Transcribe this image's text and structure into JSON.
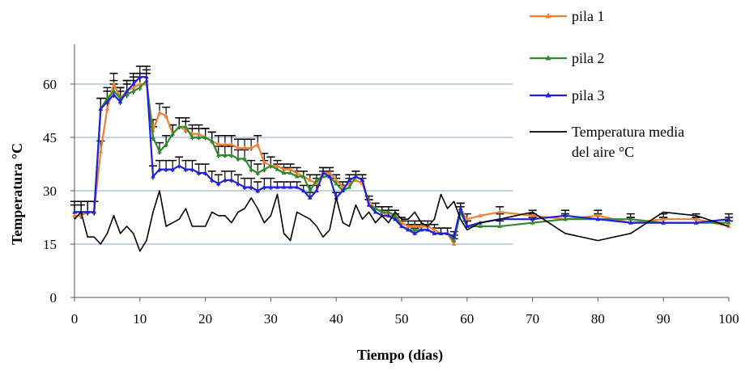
{
  "chart_data": {
    "type": "line",
    "title": "",
    "xlabel": "Tiempo (días)",
    "ylabel": "Temperatura °C",
    "xlim": [
      0,
      100
    ],
    "ylim": [
      0,
      70
    ],
    "xticks": [
      0,
      10,
      20,
      30,
      40,
      50,
      60,
      70,
      80,
      90,
      100
    ],
    "yticks": [
      0,
      15,
      30,
      45,
      60
    ],
    "grid": "horizontal at 15, 30, 45, 60",
    "legend_position": "top-right",
    "error_bars": true,
    "series": [
      {
        "name": "pila 1",
        "color": "#F07F30",
        "marker": "triangle",
        "x": [
          0,
          1,
          2,
          3,
          4,
          5,
          6,
          7,
          8,
          9,
          10,
          11,
          12,
          13,
          14,
          15,
          16,
          17,
          18,
          19,
          20,
          21,
          22,
          23,
          24,
          25,
          26,
          27,
          28,
          29,
          30,
          31,
          32,
          33,
          34,
          35,
          36,
          37,
          38,
          39,
          40,
          41,
          42,
          43,
          44,
          45,
          46,
          47,
          48,
          49,
          50,
          51,
          52,
          53,
          54,
          55,
          56,
          57,
          58,
          59,
          60,
          62,
          65,
          70,
          75,
          80,
          85,
          90,
          95,
          100
        ],
        "y": [
          23,
          23,
          24,
          24,
          41,
          53,
          60,
          56,
          58,
          59,
          60,
          60,
          47,
          52,
          51,
          46,
          48,
          47,
          46,
          46,
          45,
          44,
          43,
          43,
          43,
          42,
          42,
          42,
          43,
          38,
          37,
          37,
          36,
          36,
          35,
          34,
          33,
          32,
          35,
          35,
          33,
          31,
          32,
          33,
          32,
          27,
          25,
          24,
          23,
          23,
          21,
          20,
          20,
          20,
          20,
          19,
          18,
          18,
          15,
          25,
          22,
          23,
          24,
          23,
          22,
          23,
          21,
          22,
          22,
          20
        ]
      },
      {
        "name": "pila 2",
        "color": "#2E8B2E",
        "marker": "triangle",
        "x": [
          0,
          1,
          2,
          3,
          4,
          5,
          6,
          7,
          8,
          9,
          10,
          11,
          12,
          13,
          14,
          15,
          16,
          17,
          18,
          19,
          20,
          21,
          22,
          23,
          24,
          25,
          26,
          27,
          28,
          29,
          30,
          31,
          32,
          33,
          34,
          35,
          36,
          37,
          38,
          39,
          40,
          41,
          42,
          43,
          44,
          45,
          46,
          47,
          48,
          49,
          50,
          51,
          52,
          53,
          54,
          55,
          56,
          57,
          58,
          59,
          60,
          62,
          65,
          70,
          75,
          80,
          85,
          90,
          95,
          100
        ],
        "y": [
          24,
          24,
          24,
          24,
          53,
          56,
          58,
          56,
          57,
          58,
          59,
          61,
          45,
          41,
          43,
          46,
          48,
          48,
          45,
          45,
          45,
          44,
          40,
          40,
          40,
          39,
          39,
          36,
          35,
          36,
          37,
          36,
          35,
          35,
          34,
          34,
          30,
          33,
          34,
          34,
          32,
          30,
          31,
          34,
          33,
          26,
          25,
          24,
          24,
          23,
          20,
          19,
          19,
          19,
          19,
          18,
          18,
          18,
          16,
          24,
          20,
          20,
          20,
          21,
          22,
          22,
          22,
          21,
          21,
          21
        ]
      },
      {
        "name": "pila 3",
        "color": "#1F1FE0",
        "marker": "triangle",
        "x": [
          0,
          1,
          2,
          3,
          4,
          5,
          6,
          7,
          8,
          9,
          10,
          11,
          12,
          13,
          14,
          15,
          16,
          17,
          18,
          19,
          20,
          21,
          22,
          23,
          24,
          25,
          26,
          27,
          28,
          29,
          30,
          31,
          32,
          33,
          34,
          35,
          36,
          37,
          38,
          39,
          40,
          41,
          42,
          43,
          44,
          45,
          46,
          47,
          48,
          49,
          50,
          51,
          52,
          53,
          54,
          55,
          56,
          57,
          58,
          59,
          60,
          62,
          65,
          70,
          75,
          80,
          85,
          90,
          95,
          100
        ],
        "y": [
          24,
          24,
          24,
          24,
          53,
          55,
          57,
          55,
          58,
          60,
          62,
          62,
          34,
          36,
          36,
          36,
          37,
          36,
          36,
          35,
          35,
          33,
          32,
          33,
          33,
          32,
          31,
          31,
          30,
          31,
          31,
          31,
          31,
          31,
          31,
          30,
          28,
          30,
          35,
          34,
          28,
          30,
          33,
          34,
          33,
          26,
          24,
          23,
          23,
          22,
          20,
          19,
          18,
          19,
          19,
          18,
          18,
          18,
          17,
          25,
          20,
          21,
          22,
          22,
          23,
          22,
          21,
          21,
          21,
          22
        ]
      },
      {
        "name": "Temperatura media del aire °C",
        "color": "#000000",
        "marker": "none",
        "x": [
          0,
          1,
          2,
          3,
          4,
          5,
          6,
          7,
          8,
          9,
          10,
          11,
          12,
          13,
          14,
          15,
          16,
          17,
          18,
          19,
          20,
          21,
          22,
          23,
          24,
          25,
          26,
          27,
          28,
          29,
          30,
          31,
          32,
          33,
          34,
          35,
          36,
          37,
          38,
          39,
          40,
          41,
          42,
          43,
          44,
          45,
          46,
          47,
          48,
          49,
          50,
          51,
          52,
          53,
          54,
          55,
          56,
          57,
          58,
          59,
          60,
          62,
          65,
          70,
          75,
          80,
          85,
          90,
          95,
          100
        ],
        "y": [
          22,
          24,
          17,
          17,
          15,
          18,
          23,
          18,
          20,
          18,
          13,
          16,
          24,
          30,
          20,
          21,
          22,
          25,
          20,
          20,
          20,
          24,
          23,
          23,
          21,
          24,
          25,
          28,
          25,
          21,
          23,
          29,
          18,
          16,
          24,
          23,
          22,
          20,
          17,
          19,
          28,
          21,
          20,
          26,
          22,
          24,
          21,
          23,
          21,
          24,
          22,
          22,
          24,
          21,
          20,
          22,
          29,
          25,
          27,
          22,
          19,
          21,
          22,
          24,
          18,
          16,
          18,
          24,
          23,
          20
        ]
      }
    ]
  }
}
